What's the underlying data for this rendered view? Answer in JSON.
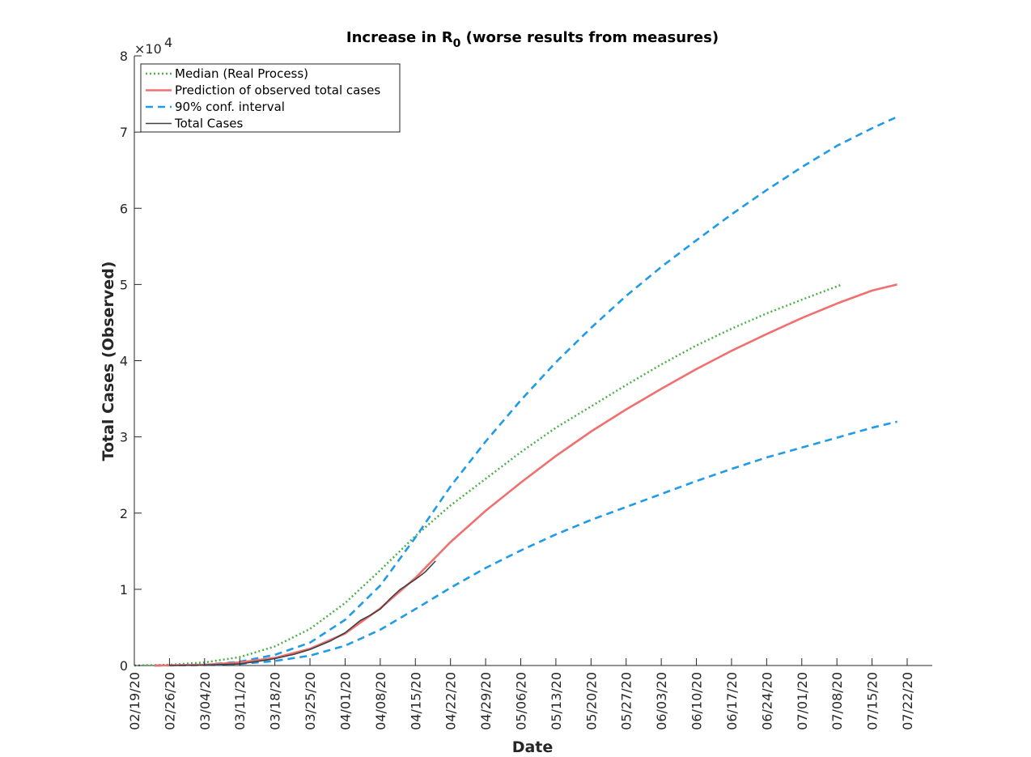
{
  "chart_data": {
    "type": "line",
    "title": "Increase in R",
    "title_subscript": "0",
    "title_suffix": " (worse results from measures)",
    "xlabel": "Date",
    "ylabel": "Total Cases (Observed)",
    "y_exponent_label": "×10",
    "y_exponent_power": "4",
    "x_axis_type": "date",
    "xlim": [
      "2020-02-19",
      "2020-07-27"
    ],
    "ylim": [
      0,
      80000
    ],
    "x_tick_dates": [
      "2020-02-19",
      "2020-02-26",
      "2020-03-04",
      "2020-03-11",
      "2020-03-18",
      "2020-03-25",
      "2020-04-01",
      "2020-04-08",
      "2020-04-15",
      "2020-04-22",
      "2020-04-29",
      "2020-05-06",
      "2020-05-13",
      "2020-05-20",
      "2020-05-27",
      "2020-06-03",
      "2020-06-10",
      "2020-06-17",
      "2020-06-24",
      "2020-07-01",
      "2020-07-08",
      "2020-07-15",
      "2020-07-22"
    ],
    "x_tick_labels": [
      "02/19/20",
      "02/26/20",
      "03/04/20",
      "03/11/20",
      "03/18/20",
      "03/25/20",
      "04/01/20",
      "04/08/20",
      "04/15/20",
      "04/22/20",
      "04/29/20",
      "05/06/20",
      "05/13/20",
      "05/20/20",
      "05/27/20",
      "06/03/20",
      "06/10/20",
      "06/17/20",
      "06/24/20",
      "07/01/20",
      "07/08/20",
      "07/15/20",
      "07/22/20"
    ],
    "y_ticks": [
      0,
      10000,
      20000,
      30000,
      40000,
      50000,
      60000,
      70000,
      80000
    ],
    "y_tick_labels": [
      "0",
      "1",
      "2",
      "3",
      "4",
      "5",
      "6",
      "7",
      "8"
    ],
    "grid": false,
    "legend_position": "top-left",
    "series": [
      {
        "name": "Median (Real Process)",
        "color": "#4daf4a",
        "style": "dotted",
        "x": [
          "2020-02-19",
          "2020-02-26",
          "2020-03-04",
          "2020-03-11",
          "2020-03-18",
          "2020-03-25",
          "2020-04-01",
          "2020-04-08",
          "2020-04-15",
          "2020-04-22",
          "2020-04-29",
          "2020-05-06",
          "2020-05-13",
          "2020-05-20",
          "2020-05-27",
          "2020-06-03",
          "2020-06-10",
          "2020-06-17",
          "2020-06-24",
          "2020-07-01",
          "2020-07-09"
        ],
        "y": [
          0,
          100,
          400,
          1100,
          2500,
          4800,
          8200,
          12500,
          17000,
          21000,
          24500,
          28000,
          31200,
          34000,
          36800,
          39500,
          42000,
          44200,
          46200,
          48000,
          50000
        ]
      },
      {
        "name": "Prediction of observed total cases",
        "color": "#f07070",
        "style": "solid",
        "x": [
          "2020-02-23",
          "2020-03-04",
          "2020-03-11",
          "2020-03-18",
          "2020-03-25",
          "2020-04-01",
          "2020-04-08",
          "2020-04-15",
          "2020-04-22",
          "2020-04-29",
          "2020-05-06",
          "2020-05-13",
          "2020-05-20",
          "2020-05-27",
          "2020-06-03",
          "2020-06-10",
          "2020-06-17",
          "2020-06-24",
          "2020-07-01",
          "2020-07-08",
          "2020-07-15",
          "2020-07-20"
        ],
        "y": [
          0,
          100,
          400,
          1000,
          2200,
          4200,
          7500,
          11500,
          16200,
          20300,
          24000,
          27500,
          30700,
          33600,
          36300,
          38900,
          41300,
          43500,
          45600,
          47500,
          49200,
          50000
        ]
      },
      {
        "name": "90% conf. interval",
        "color": "#1f9be8",
        "style": "dashed",
        "x": [
          "2020-02-23",
          "2020-03-04",
          "2020-03-11",
          "2020-03-18",
          "2020-03-25",
          "2020-04-01",
          "2020-04-08",
          "2020-04-15",
          "2020-04-22",
          "2020-04-29",
          "2020-05-06",
          "2020-05-13",
          "2020-05-20",
          "2020-05-27",
          "2020-06-03",
          "2020-06-10",
          "2020-06-17",
          "2020-06-24",
          "2020-07-01",
          "2020-07-08",
          "2020-07-15",
          "2020-07-20"
        ],
        "y": [
          0,
          100,
          500,
          1400,
          3000,
          6000,
          10500,
          16800,
          23500,
          29400,
          34800,
          39800,
          44300,
          48500,
          52300,
          55800,
          59200,
          62400,
          65400,
          68200,
          70500,
          72000
        ]
      },
      {
        "color": "#1f9be8",
        "style": "dashed",
        "x": [
          "2020-02-23",
          "2020-03-04",
          "2020-03-11",
          "2020-03-18",
          "2020-03-25",
          "2020-04-01",
          "2020-04-08",
          "2020-04-15",
          "2020-04-22",
          "2020-04-29",
          "2020-05-06",
          "2020-05-13",
          "2020-05-20",
          "2020-05-27",
          "2020-06-03",
          "2020-06-10",
          "2020-06-17",
          "2020-06-24",
          "2020-07-01",
          "2020-07-08",
          "2020-07-15",
          "2020-07-20"
        ],
        "y": [
          0,
          50,
          200,
          600,
          1300,
          2600,
          4700,
          7400,
          10200,
          12800,
          15100,
          17200,
          19100,
          20800,
          22500,
          24200,
          25800,
          27300,
          28600,
          29900,
          31200,
          32000
        ]
      },
      {
        "name": "Total Cases",
        "color": "#404040",
        "style": "solid",
        "x": [
          "2020-02-26",
          "2020-03-04",
          "2020-03-11",
          "2020-03-15",
          "2020-03-18",
          "2020-03-22",
          "2020-03-25",
          "2020-03-29",
          "2020-04-01",
          "2020-04-04",
          "2020-04-06",
          "2020-04-08",
          "2020-04-10",
          "2020-04-12",
          "2020-04-15",
          "2020-04-17",
          "2020-04-19"
        ],
        "y": [
          0,
          50,
          200,
          600,
          900,
          1500,
          2100,
          3200,
          4300,
          5900,
          6600,
          7400,
          8800,
          10000,
          11300,
          12300,
          13700
        ]
      }
    ]
  }
}
